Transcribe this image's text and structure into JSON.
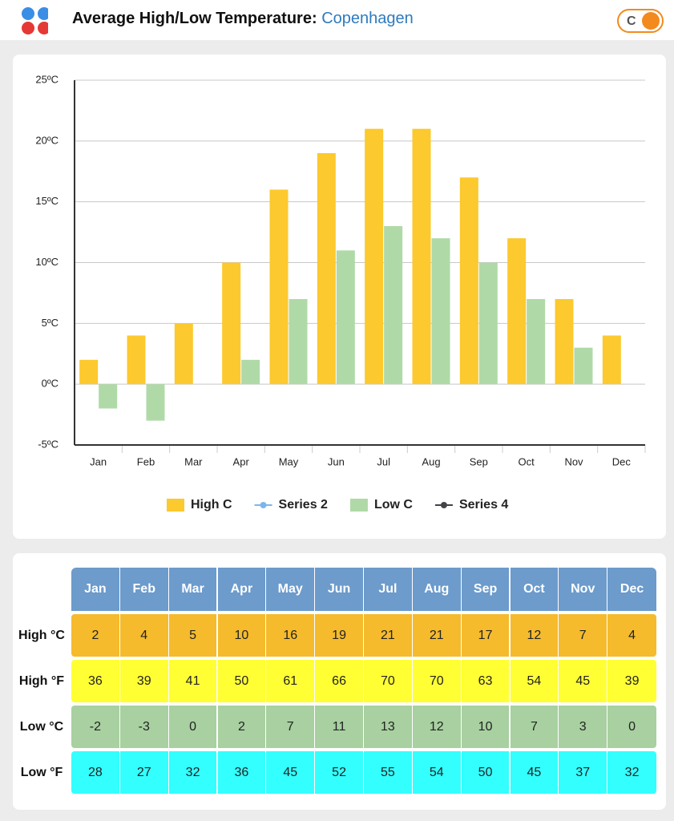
{
  "header": {
    "title": "Average High/Low Temperature:",
    "city": "Copenhagen",
    "toggle": "C"
  },
  "chart_data": {
    "type": "bar",
    "categories": [
      "Jan",
      "Feb",
      "Mar",
      "Apr",
      "May",
      "Jun",
      "Jul",
      "Aug",
      "Sep",
      "Oct",
      "Nov",
      "Dec"
    ],
    "series": [
      {
        "name": "High C",
        "color": "#fcc92e",
        "kind": "bar",
        "values": [
          2,
          4,
          5,
          10,
          16,
          19,
          21,
          21,
          17,
          12,
          7,
          4
        ]
      },
      {
        "name": "Series 2",
        "color": "#7cb5ec",
        "kind": "line",
        "values": [
          null,
          null,
          null,
          null,
          null,
          null,
          null,
          null,
          null,
          null,
          null,
          null
        ]
      },
      {
        "name": "Low C",
        "color": "#b0d9a8",
        "kind": "bar",
        "values": [
          -2,
          -3,
          0,
          2,
          7,
          11,
          13,
          12,
          10,
          7,
          3,
          0
        ]
      },
      {
        "name": "Series 4",
        "color": "#434348",
        "kind": "line",
        "values": [
          null,
          null,
          null,
          null,
          null,
          null,
          null,
          null,
          null,
          null,
          null,
          null
        ]
      }
    ],
    "ylim": [
      -5,
      25
    ],
    "yticks": [
      {
        "value": -5,
        "label": "-5ºC"
      },
      {
        "value": 0,
        "label": "0ºC"
      },
      {
        "value": 5,
        "label": "5ºC"
      },
      {
        "value": 10,
        "label": "10ºC"
      },
      {
        "value": 15,
        "label": "15ºC"
      },
      {
        "value": 20,
        "label": "20ºC"
      },
      {
        "value": 25,
        "label": "25ºC"
      }
    ],
    "grid": true,
    "legend": "bottom"
  },
  "table": {
    "columns": [
      "Jan",
      "Feb",
      "Mar",
      "Apr",
      "May",
      "Jun",
      "Jul",
      "Aug",
      "Sep",
      "Oct",
      "Nov",
      "Dec"
    ],
    "rows": [
      {
        "label": "High °C",
        "color": "#f5bb2d",
        "values": [
          "2",
          "4",
          "5",
          "10",
          "16",
          "19",
          "21",
          "21",
          "17",
          "12",
          "7",
          "4"
        ]
      },
      {
        "label": "High °F",
        "color": "#ffff33",
        "values": [
          "36",
          "39",
          "41",
          "50",
          "61",
          "66",
          "70",
          "70",
          "63",
          "54",
          "45",
          "39"
        ]
      },
      {
        "label": "Low °C",
        "color": "#a8d0a0",
        "values": [
          "-2",
          "-3",
          "0",
          "2",
          "7",
          "11",
          "13",
          "12",
          "10",
          "7",
          "3",
          "0"
        ]
      },
      {
        "label": "Low °F",
        "color": "#33ffff",
        "values": [
          "28",
          "27",
          "32",
          "36",
          "45",
          "52",
          "55",
          "54",
          "50",
          "45",
          "37",
          "32"
        ]
      }
    ]
  }
}
